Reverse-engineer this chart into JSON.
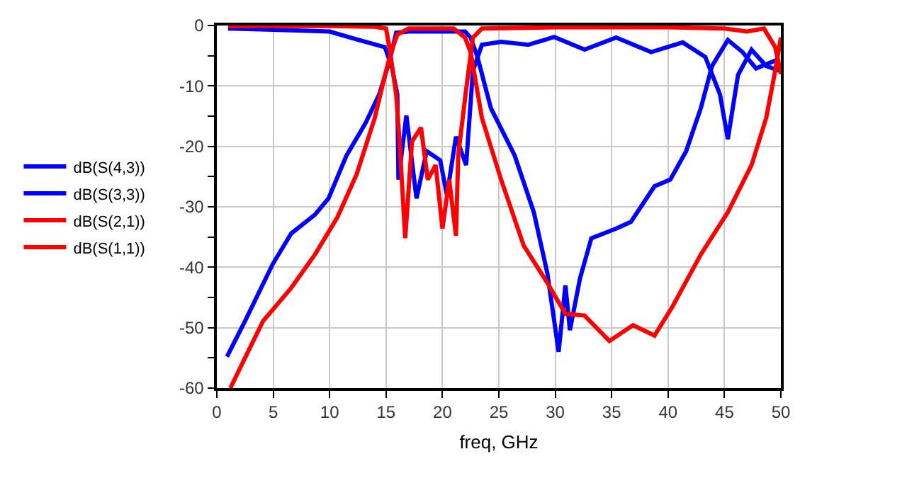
{
  "chart_data": {
    "type": "line",
    "xlabel": "freq, GHz",
    "xlim": [
      0,
      50
    ],
    "ylim": [
      -60,
      0
    ],
    "xticks": [
      0,
      5,
      10,
      15,
      20,
      25,
      30,
      35,
      40,
      45,
      50
    ],
    "yticks": [
      -60,
      {
        "value": -55,
        "label": null
      },
      -50,
      {
        "value": -45,
        "label": null
      },
      -40,
      {
        "value": -35,
        "label": null
      },
      -30,
      {
        "value": -25,
        "label": null
      },
      -20,
      {
        "value": -15,
        "label": null
      },
      -10,
      {
        "value": -5,
        "label": null
      },
      0
    ],
    "grid": true,
    "legend": "left",
    "marker": "none",
    "line_style": "solid",
    "series": [
      {
        "name": "dB(S(4,3))",
        "color": "#0000ff",
        "x": [
          0.9,
          2.5,
          4.95,
          6.6,
          8.7,
          9.9,
          11.5,
          13.2,
          14.4,
          15.3,
          15.9,
          17,
          19,
          21,
          22,
          22.5,
          23.1,
          24.3,
          26.4,
          28.1,
          29.3,
          30.3,
          30.9,
          31.3,
          32.2,
          33.2,
          35.4,
          36.7,
          38.8,
          40.2,
          41.6,
          42.9,
          43.9,
          45.3,
          46.6,
          47.8,
          49.9
        ],
        "values": [
          -54.8,
          -48.9,
          -39.5,
          -34.4,
          -31.3,
          -28.6,
          -21.5,
          -16.1,
          -11.4,
          -5.9,
          -1.2,
          -1,
          -1,
          -1,
          -1,
          -2,
          -5.2,
          -13.7,
          -21.5,
          -30.9,
          -41,
          -54,
          -43,
          -50.4,
          -41.8,
          -35.2,
          -33.6,
          -32.5,
          -26.6,
          -25.5,
          -20.8,
          -13.7,
          -6.7,
          -2.4,
          -4.4,
          -7.1,
          -5.5
        ]
      },
      {
        "name": "dB(S(3,3))",
        "color": "#0000ff",
        "x": [
          1,
          5,
          10,
          12.4,
          14.9,
          15.5,
          16.0,
          16.1,
          16.8,
          17.7,
          18.6,
          19.8,
          20.4,
          21.2,
          22.1,
          22.7,
          23.5,
          25.2,
          27.6,
          29.9,
          32.6,
          35.4,
          38.5,
          41.3,
          43.3,
          44.6,
          45.3,
          46.2,
          47.4,
          48.7,
          49.9
        ],
        "values": [
          -0.5,
          -0.7,
          -1,
          -2.3,
          -3.6,
          -6.7,
          -11.4,
          -25.5,
          -14.9,
          -28.6,
          -20.8,
          -22.3,
          -28.1,
          -18.4,
          -23.1,
          -7.5,
          -3.2,
          -2.7,
          -3.2,
          -1.9,
          -4,
          -2,
          -4.4,
          -2.8,
          -5.2,
          -11.4,
          -18.8,
          -8.2,
          -4,
          -6.7,
          -7.5
        ]
      },
      {
        "name": "dB(S(2,1))",
        "color": "#ff0000",
        "x": [
          1.2,
          2.5,
          4.1,
          6.6,
          8.7,
          10.7,
          12.4,
          14.0,
          15.0,
          15.6,
          16,
          17,
          19,
          21,
          22,
          22.5,
          23.5,
          25.2,
          27.2,
          29.3,
          30.9,
          32.6,
          34.8,
          36.9,
          38.8,
          40.4,
          42.9,
          45.3,
          47.4,
          48.7,
          49.5,
          50
        ],
        "values": [
          -60,
          -55,
          -48.9,
          -43.4,
          -37.9,
          -31.7,
          -24.6,
          -15.3,
          -7.5,
          -3.6,
          -1.5,
          -0.5,
          -0.5,
          -0.5,
          -2,
          -4.4,
          -15.3,
          -25.5,
          -36.4,
          -42.6,
          -47.7,
          -48,
          -52.2,
          -49.6,
          -51.3,
          -46.5,
          -37.9,
          -30.9,
          -23.1,
          -15.3,
          -7.5,
          -2
        ]
      },
      {
        "name": "dB(S(1,1))",
        "color": "#ff0000",
        "x": [
          1,
          10,
          14,
          15,
          15.3,
          15.9,
          16.2,
          16.7,
          17.3,
          18.1,
          18.7,
          19.4,
          20.0,
          20.6,
          21.2,
          21.4,
          22.1,
          22.7,
          23.5,
          30,
          40,
          45,
          47,
          48.5,
          49.5,
          50
        ],
        "values": [
          -0.1,
          -0.1,
          -0.2,
          -0.5,
          -3.6,
          -11.4,
          -19.2,
          -35.2,
          -19.2,
          -16.9,
          -25.5,
          -23.1,
          -33.6,
          -25.5,
          -34.8,
          -21.5,
          -10.6,
          -2,
          -0.5,
          -0.3,
          -0.3,
          -0.5,
          -1,
          -0.5,
          -3.6,
          -8
        ]
      }
    ]
  }
}
